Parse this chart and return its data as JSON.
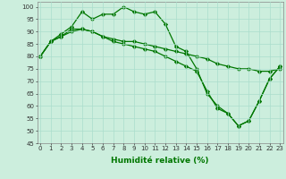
{
  "series": [
    {
      "x": [
        0,
        1,
        2,
        3,
        4,
        5,
        6,
        7,
        8,
        9,
        10,
        11,
        12,
        13,
        14,
        15,
        16,
        17,
        18,
        19,
        20,
        21,
        22,
        23
      ],
      "y": [
        80,
        86,
        89,
        92,
        98,
        95,
        97,
        97,
        100,
        98,
        97,
        98,
        93,
        84,
        82,
        75,
        65,
        60,
        57,
        52,
        54,
        62,
        71,
        76
      ]
    },
    {
      "x": [
        0,
        1,
        2,
        3,
        4,
        5,
        6,
        7,
        8,
        9,
        10,
        11,
        12,
        13,
        14,
        15,
        16,
        17,
        18,
        19,
        20,
        21,
        22,
        23
      ],
      "y": [
        80,
        86,
        88,
        91,
        91,
        90,
        88,
        87,
        86,
        86,
        85,
        84,
        83,
        82,
        81,
        80,
        79,
        77,
        76,
        75,
        75,
        74,
        74,
        75
      ]
    },
    {
      "x": [
        0,
        1,
        2,
        3,
        4,
        5,
        6,
        7,
        8,
        9,
        10,
        11,
        12,
        13,
        14,
        15,
        16,
        17,
        18,
        19,
        20,
        21,
        22,
        23
      ],
      "y": [
        80,
        86,
        88,
        90,
        91,
        90,
        88,
        86,
        85,
        84,
        83,
        82,
        80,
        78,
        76,
        74,
        66,
        59,
        57,
        52,
        54,
        62,
        71,
        76
      ]
    }
  ],
  "marker": "D",
  "markersize": 2.2,
  "linewidth": 0.9,
  "xlim": [
    -0.3,
    23.3
  ],
  "ylim": [
    45,
    102
  ],
  "yticks": [
    45,
    50,
    55,
    60,
    65,
    70,
    75,
    80,
    85,
    90,
    95,
    100
  ],
  "xticks": [
    0,
    1,
    2,
    3,
    4,
    5,
    6,
    7,
    8,
    9,
    10,
    11,
    12,
    13,
    14,
    15,
    16,
    17,
    18,
    19,
    20,
    21,
    22,
    23
  ],
  "xlabel": "Humidité relative (%)",
  "xlabel_fontsize": 6.5,
  "tick_fontsize": 5.0,
  "background_color": "#cceedd",
  "grid_color": "#aaddcc",
  "line_color": "#007700"
}
